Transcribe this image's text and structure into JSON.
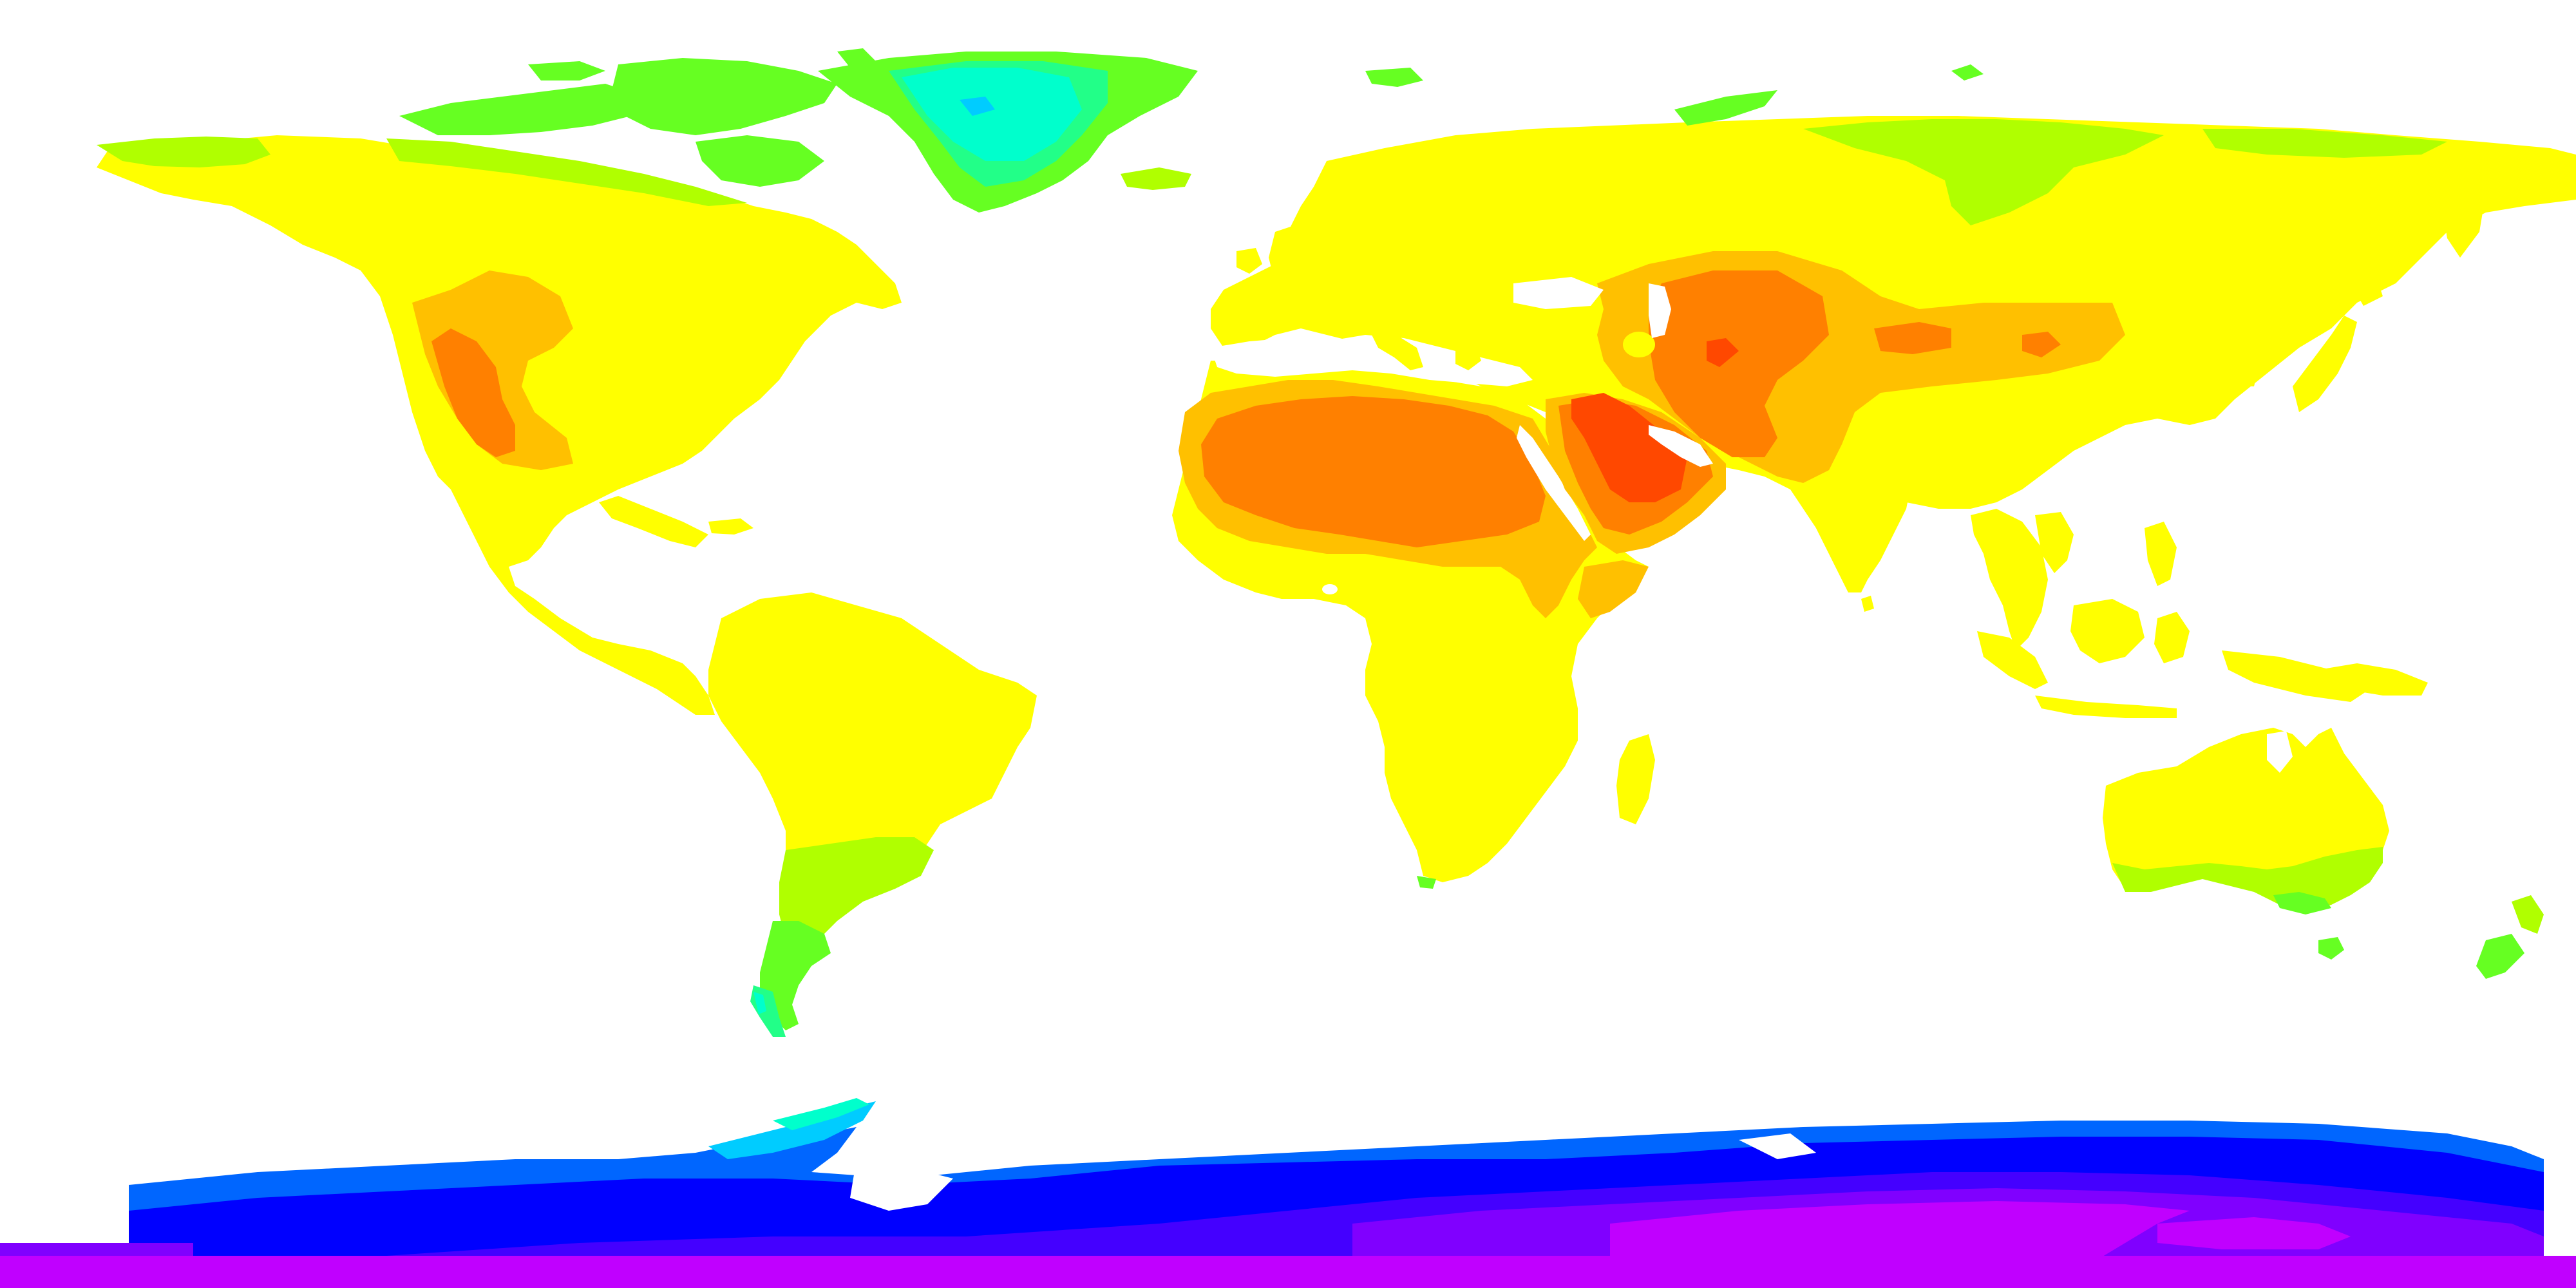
{
  "map": {
    "projection": "equirectangular",
    "coverage": "world",
    "background_color": "#ffffff",
    "ocean_color": "#ffffff",
    "color_scale": [
      {
        "level": 1,
        "color": "#c000ff"
      },
      {
        "level": 2,
        "color": "#8000ff"
      },
      {
        "level": 3,
        "color": "#4400ff"
      },
      {
        "level": 4,
        "color": "#0000ff"
      },
      {
        "level": 5,
        "color": "#0066ff"
      },
      {
        "level": 6,
        "color": "#00ccff"
      },
      {
        "level": 7,
        "color": "#00ffcc"
      },
      {
        "level": 8,
        "color": "#22ff88"
      },
      {
        "level": 9,
        "color": "#66ff22"
      },
      {
        "level": 10,
        "color": "#b0ff00"
      },
      {
        "level": 11,
        "color": "#ffff00"
      },
      {
        "level": 12,
        "color": "#ffc000"
      },
      {
        "level": 13,
        "color": "#ff8000"
      },
      {
        "level": 14,
        "color": "#ff4800"
      }
    ],
    "regions": [
      "north-america",
      "greenland",
      "canadian-arctic",
      "south-america",
      "europe",
      "africa",
      "middle-east",
      "asia",
      "india",
      "southeast-asia",
      "indonesia",
      "australia",
      "new-zealand",
      "madagascar",
      "japan",
      "antarctica",
      "svalbard",
      "iceland",
      "uk",
      "ireland"
    ]
  }
}
